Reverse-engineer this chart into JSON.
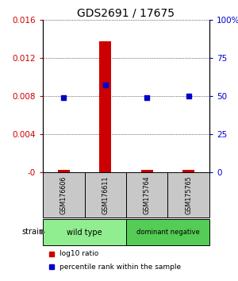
{
  "title": "GDS2691 / 17675",
  "samples": [
    "GSM176606",
    "GSM176611",
    "GSM175764",
    "GSM175765"
  ],
  "log10_ratio": [
    0.0002,
    0.0137,
    0.0002,
    0.0002
  ],
  "percentile_rank_pct": [
    49,
    57,
    49,
    50
  ],
  "ylim_left": [
    0,
    0.016
  ],
  "ylim_right": [
    0,
    100
  ],
  "yticks_left": [
    0,
    0.004,
    0.008,
    0.012,
    0.016
  ],
  "ytick_labels_left": [
    "-0",
    "0.004",
    "0.008",
    "0.012",
    "0.016"
  ],
  "yticks_right": [
    0,
    25,
    50,
    75,
    100
  ],
  "ytick_labels_right": [
    "0",
    "25",
    "50",
    "75",
    "100%"
  ],
  "groups": [
    {
      "label": "wild type",
      "indices": [
        0,
        1
      ],
      "color": "#90EE90"
    },
    {
      "label": "dominant negative",
      "indices": [
        2,
        3
      ],
      "color": "#55CC55"
    }
  ],
  "bar_color": "#CC0000",
  "dot_color": "#0000CC",
  "sample_box_color": "#C8C8C8",
  "legend_items": [
    {
      "color": "#CC0000",
      "label": "log10 ratio"
    },
    {
      "color": "#0000CC",
      "label": "percentile rank within the sample"
    }
  ],
  "strain_label": "strain",
  "arrow_color": "#666666"
}
